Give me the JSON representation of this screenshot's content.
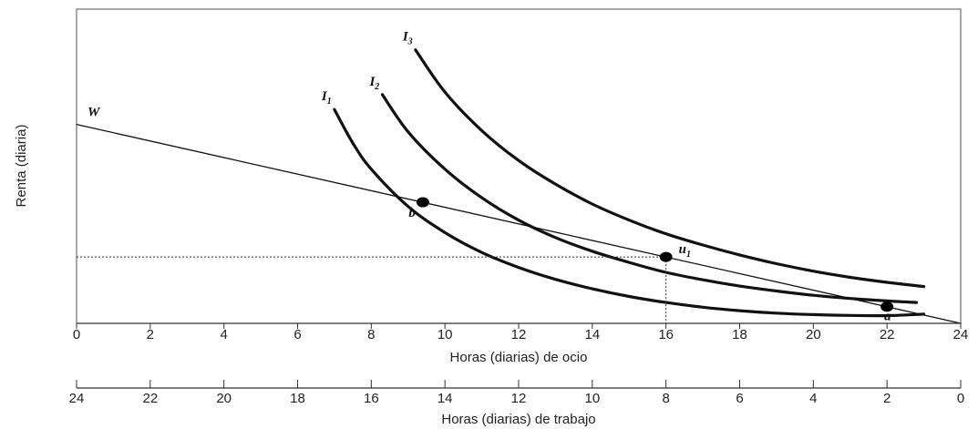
{
  "chart_data": {
    "type": "line",
    "xlabel": "Horas (diarias) de ocio",
    "xlabel2": "Horas (diarias) de trabajo",
    "ylabel": "Renta (diaria)",
    "xlim": [
      0,
      24
    ],
    "x_ticks": [
      0,
      2,
      4,
      6,
      8,
      10,
      12,
      14,
      16,
      18,
      20,
      22,
      24
    ],
    "x2_ticks": [
      24,
      22,
      20,
      18,
      16,
      14,
      12,
      10,
      8,
      6,
      4,
      2,
      0
    ],
    "grid": false,
    "series": [
      {
        "name": "W",
        "style": "thin",
        "x": [
          0,
          24
        ],
        "y": [
          0.8,
          0.0
        ]
      },
      {
        "name": "I1",
        "label": "I",
        "label_sub": "1",
        "style": "thick",
        "x": [
          7.0,
          7.5,
          8.0,
          9.0,
          10.0,
          11.0,
          12.0,
          13.0,
          14.0,
          15.0,
          16.0,
          17.0,
          18.0,
          19.0,
          20.0,
          21.0,
          22.0,
          23.0
        ],
        "y": [
          0.86,
          0.725,
          0.62,
          0.47,
          0.365,
          0.285,
          0.225,
          0.177,
          0.139,
          0.108,
          0.084,
          0.065,
          0.051,
          0.041,
          0.035,
          0.032,
          0.031,
          0.037
        ]
      },
      {
        "name": "I2",
        "label": "I",
        "label_sub": "2",
        "style": "thick",
        "x": [
          8.3,
          9.0,
          10.0,
          11.0,
          12.0,
          13.0,
          14.0,
          15.0,
          16.0,
          17.0,
          18.0,
          19.0,
          20.0,
          21.0,
          22.0,
          22.8
        ],
        "y": [
          0.92,
          0.77,
          0.62,
          0.505,
          0.415,
          0.345,
          0.29,
          0.245,
          0.205,
          0.175,
          0.15,
          0.13,
          0.113,
          0.1,
          0.09,
          0.084
        ]
      },
      {
        "name": "I3",
        "label": "I",
        "label_sub": "3",
        "style": "thick",
        "x": [
          9.2,
          10.0,
          11.0,
          12.0,
          13.0,
          14.0,
          15.0,
          16.0,
          17.0,
          18.0,
          19.0,
          20.0,
          21.0,
          22.0,
          23.0
        ],
        "y": [
          1.1,
          0.93,
          0.775,
          0.655,
          0.56,
          0.48,
          0.415,
          0.36,
          0.315,
          0.275,
          0.24,
          0.21,
          0.185,
          0.165,
          0.148
        ]
      }
    ],
    "points": [
      {
        "label": "b",
        "x": 9.4,
        "y": 0.487
      },
      {
        "label": "u",
        "label_sub": "1",
        "x": 16.0,
        "y": 0.267
      },
      {
        "label": "a",
        "x": 22.0,
        "y": 0.067
      }
    ]
  }
}
